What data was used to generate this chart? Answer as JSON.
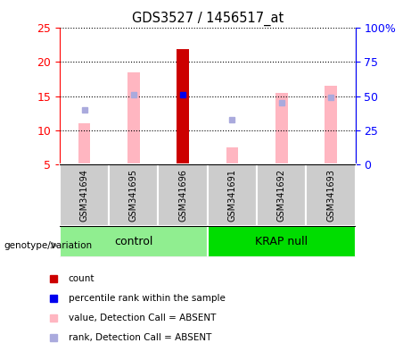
{
  "title": "GDS3527 / 1456517_at",
  "samples": [
    "GSM341694",
    "GSM341695",
    "GSM341696",
    "GSM341691",
    "GSM341692",
    "GSM341693"
  ],
  "ylim_left": [
    5,
    25
  ],
  "ylim_right": [
    0,
    100
  ],
  "yticks_left": [
    5,
    10,
    15,
    20,
    25
  ],
  "yticks_right": [
    0,
    25,
    50,
    75,
    100
  ],
  "pink_bar_heights": [
    11.0,
    18.5,
    null,
    7.5,
    15.5,
    16.5
  ],
  "red_bar_height": 21.8,
  "red_bar_index": 2,
  "blue_dot_value": 15.2,
  "blue_dot_index": 2,
  "light_blue_dot_values": [
    13.0,
    15.2,
    null,
    11.5,
    14.0,
    14.8
  ],
  "group_labels": [
    "control",
    "KRAP null"
  ],
  "background_color": "#FFFFFF",
  "left_axis_color": "#FF0000",
  "right_axis_color": "#0000FF",
  "bar_width": 0.25,
  "pink_color": "#FFB6C1",
  "red_color": "#CC0000",
  "blue_color": "#0000EE",
  "light_blue_color": "#AAAADD",
  "ctrl_green": "#90EE90",
  "krap_green": "#00DD00",
  "legend_items": [
    {
      "label": "count",
      "color": "#CC0000"
    },
    {
      "label": "percentile rank within the sample",
      "color": "#0000EE"
    },
    {
      "label": "value, Detection Call = ABSENT",
      "color": "#FFB6C1"
    },
    {
      "label": "rank, Detection Call = ABSENT",
      "color": "#AAAADD"
    }
  ]
}
